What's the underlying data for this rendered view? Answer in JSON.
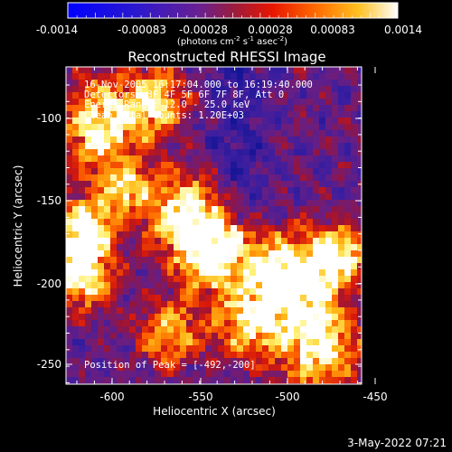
{
  "colorbar": {
    "ticks": [
      "-0.0014",
      "-0.00083",
      "-0.00028",
      "0.00028",
      "0.00083",
      "0.0014"
    ],
    "units": "(photons cm",
    "units_exp1": "-2",
    "units_mid": " s",
    "units_exp2": "-1",
    "units_tail": " asec",
    "units_exp3": "-2",
    "units_close": ")"
  },
  "title": "Reconstructed RHESSI Image",
  "annotation": {
    "line1": "16-Nov-2005 16:17:04.000 to 16:19:40.000",
    "line2": "Detectors: 3F 4F 5F 6F 7F 8F, Att 0",
    "line3": "Energy Range: 12.0 - 25.0 keV",
    "line4": "Clean    Total counts: 1.20E+03",
    "peak": "Position of Peak = [-492,-200]"
  },
  "axes": {
    "xlabel": "Heliocentric X (arcsec)",
    "ylabel": "Heliocentric Y (arcsec)",
    "xticks": [
      "-600",
      "-550",
      "-500",
      "-450"
    ],
    "yticks": [
      "-100",
      "-150",
      "-200",
      "-250"
    ]
  },
  "timestamp": "3-May-2022 07:21",
  "colors": {
    "background": "#000000",
    "colormap": [
      "#0000ff",
      "#4020c0",
      "#802080",
      "#c02020",
      "#ff4000",
      "#ffa000",
      "#ffff60",
      "#ffffff"
    ]
  }
}
